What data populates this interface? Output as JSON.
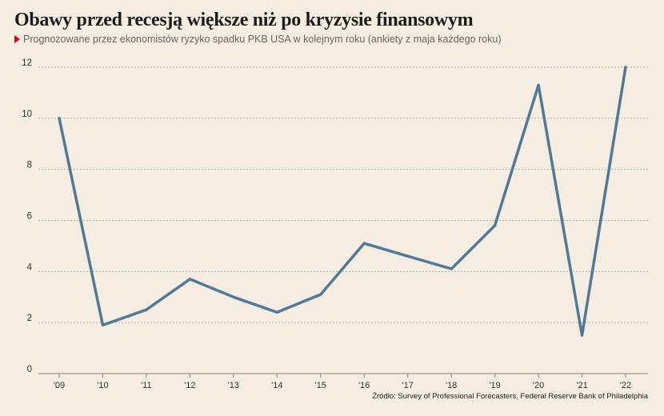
{
  "header": {
    "title": "Obawy przed recesją większe niż po kryzysie finansowym",
    "subtitle": "Prognozowane przez ekonomistów ryzyko spadku PKB USA w kolejnym roku (ankiety z maja każdego roku)"
  },
  "footer": {
    "source": "Źródło: Survey of Professional Forecasters, Federal Reserve Bank of Philadelphia"
  },
  "colors": {
    "background": "#f5ece2",
    "line": "#527a96",
    "grid": "#b9b2aa",
    "accent_marker": "#d0021b"
  },
  "chart_data": {
    "type": "line",
    "categories": [
      "'09",
      "'10",
      "'11",
      "'12",
      "'13",
      "'14",
      "'15",
      "'16",
      "'17",
      "'18",
      "'19",
      "'20",
      "'21",
      "'22"
    ],
    "series": [
      {
        "values": [
          10.0,
          1.9,
          2.5,
          3.7,
          3.0,
          2.4,
          3.1,
          5.1,
          4.6,
          4.1,
          5.8,
          11.3,
          1.5,
          12.0
        ]
      }
    ],
    "y_ticks": [
      0,
      2,
      4,
      6,
      8,
      10,
      12
    ],
    "ylim": [
      0,
      12
    ],
    "grid": true,
    "legend": "none"
  }
}
